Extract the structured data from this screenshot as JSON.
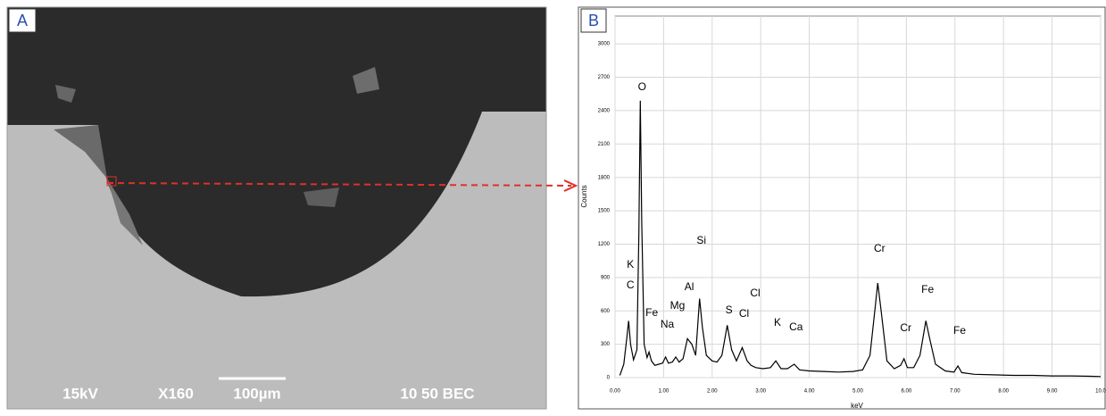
{
  "panel_a": {
    "label": "A",
    "footer": [
      "15kV",
      "X160",
      "100µm",
      "10 50 BEC"
    ]
  },
  "chart_data": {
    "type": "line",
    "panel_label": "B",
    "x_label": "keV",
    "y_label": "Counts",
    "color": "#000000",
    "x": [
      0.1,
      0.18,
      0.24,
      0.28,
      0.32,
      0.38,
      0.45,
      0.49,
      0.52,
      0.55,
      0.6,
      0.66,
      0.7,
      0.75,
      0.82,
      0.9,
      0.98,
      1.04,
      1.1,
      1.18,
      1.25,
      1.32,
      1.4,
      1.49,
      1.58,
      1.66,
      1.74,
      1.8,
      1.88,
      2.0,
      2.1,
      2.2,
      2.31,
      2.4,
      2.5,
      2.62,
      2.72,
      2.8,
      2.9,
      3.05,
      3.2,
      3.31,
      3.42,
      3.55,
      3.69,
      3.8,
      4.0,
      4.3,
      4.6,
      4.9,
      5.1,
      5.25,
      5.35,
      5.41,
      5.48,
      5.6,
      5.75,
      5.88,
      5.95,
      6.02,
      6.15,
      6.28,
      6.4,
      6.48,
      6.6,
      6.8,
      6.98,
      7.06,
      7.14,
      7.4,
      7.8,
      8.2,
      8.6,
      9.0,
      9.4,
      9.8,
      10.0
    ],
    "values": [
      20,
      120,
      350,
      510,
      300,
      160,
      250,
      1300,
      2490,
      1400,
      300,
      180,
      230,
      150,
      110,
      120,
      130,
      185,
      130,
      140,
      185,
      140,
      170,
      350,
      300,
      200,
      710,
      450,
      200,
      150,
      140,
      200,
      470,
      250,
      150,
      270,
      150,
      110,
      90,
      80,
      90,
      150,
      80,
      80,
      120,
      70,
      60,
      55,
      50,
      55,
      70,
      200,
      600,
      850,
      600,
      150,
      80,
      110,
      170,
      90,
      90,
      200,
      510,
      350,
      120,
      60,
      50,
      105,
      45,
      30,
      25,
      20,
      20,
      15,
      15,
      12,
      10
    ],
    "xlim": [
      0,
      10
    ],
    "ylim": [
      0,
      3250
    ],
    "xticks": [
      {
        "value": 0,
        "label": "0.00"
      },
      {
        "value": 1,
        "label": "1.00"
      },
      {
        "value": 2,
        "label": "2.00"
      },
      {
        "value": 3,
        "label": "3.00"
      },
      {
        "value": 4,
        "label": "4.00"
      },
      {
        "value": 5,
        "label": "5.00"
      },
      {
        "value": 6,
        "label": "6.00"
      },
      {
        "value": 7,
        "label": "7.00"
      },
      {
        "value": 8,
        "label": "8.00"
      },
      {
        "value": 9,
        "label": "9.00"
      },
      {
        "value": 10,
        "label": "10.0"
      }
    ],
    "yticks": [
      0,
      300,
      600,
      900,
      1200,
      1500,
      1800,
      2100,
      2400,
      2700,
      3000
    ],
    "grid": true,
    "annotations": [
      {
        "text": "K",
        "x": 0.28
      },
      {
        "text": "C",
        "x": 0.28
      },
      {
        "text": "O",
        "x": 0.52
      },
      {
        "text": "Fe",
        "x": 0.72
      },
      {
        "text": "Na",
        "x": 1.04
      },
      {
        "text": "Mg",
        "x": 1.25
      },
      {
        "text": "Al",
        "x": 1.49
      },
      {
        "text": "Si",
        "x": 1.74
      },
      {
        "text": "S",
        "x": 2.31
      },
      {
        "text": "Cl",
        "x": 2.62
      },
      {
        "text": "Cl",
        "x": 2.85
      },
      {
        "text": "K",
        "x": 3.31
      },
      {
        "text": "Ca",
        "x": 3.69
      },
      {
        "text": "Cr",
        "x": 5.41
      },
      {
        "text": "Cr",
        "x": 5.95
      },
      {
        "text": "Fe",
        "x": 6.4
      },
      {
        "text": "Fe",
        "x": 7.06
      }
    ]
  }
}
